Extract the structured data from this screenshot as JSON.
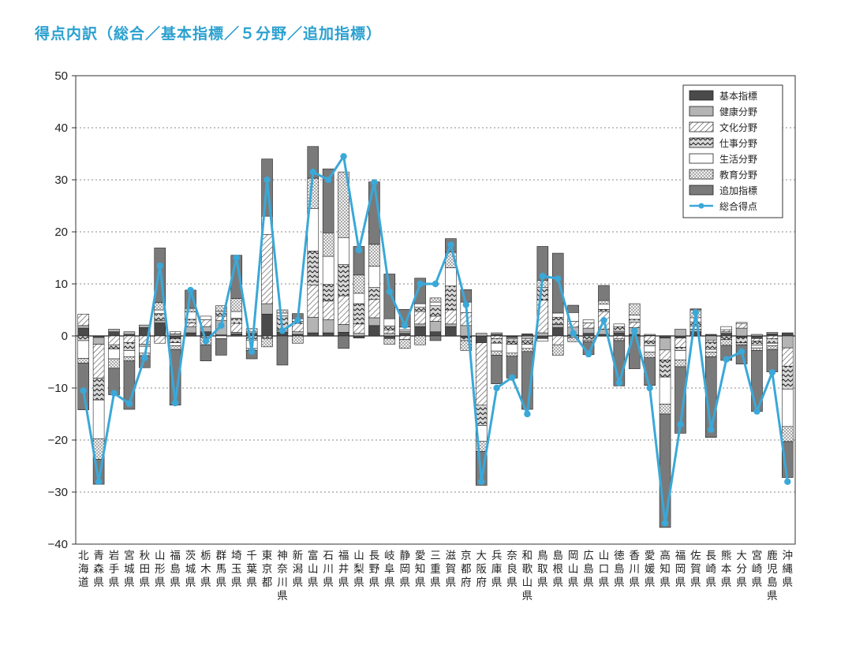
{
  "chart_data": {
    "type": "bar",
    "stacked": true,
    "title": "得点内訳（総合／基本指標／５分野／追加指標）",
    "ylim": [
      -40,
      50
    ],
    "yticks": [
      -40,
      -30,
      -20,
      -10,
      0,
      10,
      20,
      30,
      40,
      50
    ],
    "grid": true,
    "legend_position": "top-right",
    "categories": [
      "北海道",
      "青森県",
      "岩手県",
      "宮城県",
      "秋田県",
      "山形県",
      "福島県",
      "茨城県",
      "栃木県",
      "群馬県",
      "埼玉県",
      "千葉県",
      "東京都",
      "神奈川県",
      "新潟県",
      "富山県",
      "石川県",
      "福井県",
      "山梨県",
      "長野県",
      "岐阜県",
      "静岡県",
      "愛知県",
      "三重県",
      "滋賀県",
      "京都府",
      "大阪府",
      "兵庫県",
      "奈良県",
      "和歌山県",
      "鳥取県",
      "島根県",
      "岡山県",
      "広島県",
      "山口県",
      "徳島県",
      "香川県",
      "愛媛県",
      "高知県",
      "福岡県",
      "佐賀県",
      "長崎県",
      "熊本県",
      "大分県",
      "宮崎県",
      "鹿児島県",
      "沖縄県"
    ],
    "series": [
      {
        "name": "基本指標",
        "color": "#4a4a4a",
        "pattern": "solid-dark",
        "values": [
          1.5,
          -0.3,
          0.8,
          0.3,
          1.6,
          2.5,
          -0.5,
          0.6,
          0.8,
          0.2,
          0.4,
          0.5,
          4.2,
          0.7,
          0.3,
          0.6,
          0.6,
          0.7,
          -0.4,
          2.0,
          -0.5,
          0.5,
          1.8,
          0.8,
          1.8,
          -0.3,
          -1.3,
          0.3,
          -0.3,
          0.4,
          -0.5,
          1.6,
          0.2,
          0.5,
          0.3,
          0.6,
          0.3,
          0.1,
          -0.4,
          -0.4,
          0.8,
          0.3,
          0.5,
          -0.3,
          -0.5,
          0.4,
          0.6
        ]
      },
      {
        "name": "健康分野",
        "color": "#b4b4b4",
        "pattern": "solid-light",
        "values": [
          0.5,
          -1.3,
          0.5,
          0.5,
          0.5,
          0.5,
          0.4,
          1.2,
          1.0,
          2.8,
          0.3,
          0.3,
          2.0,
          0.3,
          0.5,
          3.0,
          2.5,
          1.5,
          0.5,
          1.5,
          0.5,
          0.3,
          0.5,
          2.0,
          0.5,
          2.0,
          0.5,
          0.3,
          -0.3,
          -0.5,
          0.6,
          0.6,
          1.5,
          1.0,
          1.0,
          0.3,
          1.3,
          0.2,
          -2.3,
          1.3,
          0.5,
          -0.8,
          0.3,
          1.5,
          0.3,
          0.3,
          -2.3
        ]
      },
      {
        "name": "文化分野",
        "color": "#ffffff",
        "pattern": "diag-right",
        "values": [
          2.2,
          -6.5,
          -1.7,
          -1.3,
          -1.6,
          -1.4,
          0.4,
          0.7,
          1.3,
          0.8,
          1.7,
          0.6,
          13.3,
          0.3,
          1.6,
          6.2,
          3.6,
          5.5,
          1.8,
          3.5,
          0.6,
          -0.7,
          2.4,
          1.0,
          2.7,
          2.5,
          -12.0,
          -0.5,
          -0.4,
          -0.4,
          6.3,
          -1.7,
          1.1,
          1.0,
          3.4,
          -0.5,
          1.0,
          -1.0,
          -1.9,
          -1.8,
          0.6,
          -0.4,
          0.4,
          0.9,
          -0.5,
          -0.5,
          -3.5
        ]
      },
      {
        "name": "仕事分野",
        "color": "#d8d8d8",
        "pattern": "zigzag",
        "values": [
          -0.9,
          -4.2,
          -0.8,
          -1.5,
          -0.4,
          1.3,
          -0.8,
          0.7,
          -0.3,
          1.0,
          1.0,
          -0.8,
          -0.5,
          2.6,
          0.4,
          6.5,
          3.2,
          6.0,
          3.9,
          2.3,
          0.8,
          0.4,
          0.8,
          2.0,
          4.6,
          -0.6,
          -3.9,
          -0.9,
          -0.6,
          -0.7,
          2.4,
          1.4,
          -0.3,
          -0.8,
          0.4,
          0.9,
          0.6,
          -0.9,
          -3.3,
          -0.6,
          0.8,
          -1.4,
          -0.7,
          -1.0,
          -0.8,
          -0.9,
          -4.4
        ]
      },
      {
        "name": "生活分野",
        "color": "#ffffff",
        "pattern": "blank",
        "values": [
          -3.4,
          -7.5,
          -1.9,
          -1.2,
          -1.3,
          0.7,
          -0.6,
          1.4,
          0.7,
          -0.5,
          1.3,
          -1.6,
          3.5,
          0.5,
          0.5,
          8.2,
          5.4,
          5.2,
          2.0,
          4.1,
          1.4,
          0.5,
          0.7,
          0.7,
          3.5,
          2.0,
          -3.0,
          -1.5,
          -1.7,
          -0.8,
          -0.5,
          0.8,
          1.7,
          0.6,
          1.0,
          0.5,
          0.8,
          -1.2,
          -5.2,
          -1.8,
          0.8,
          -0.5,
          0.6,
          0.2,
          -0.5,
          -0.5,
          -7.2
        ]
      },
      {
        "name": "教育分野",
        "color": "#ffffff",
        "pattern": "dots",
        "values": [
          -0.9,
          -3.9,
          -1.8,
          -0.8,
          -0.5,
          1.4,
          -0.7,
          0.7,
          -1.4,
          1.0,
          2.5,
          -0.4,
          -1.6,
          0.6,
          -1.4,
          5.8,
          4.5,
          12.6,
          3.5,
          4.2,
          -1.1,
          -1.7,
          -1.7,
          0.8,
          3.0,
          -1.9,
          -2.0,
          -0.8,
          -0.6,
          -0.6,
          1.4,
          -2.0,
          -0.8,
          -0.3,
          0.7,
          -0.4,
          2.2,
          -1.1,
          -1.9,
          -1.3,
          1.5,
          -0.9,
          -1.1,
          -0.4,
          -0.5,
          -0.7,
          -2.9
        ]
      },
      {
        "name": "追加指標",
        "color": "#7a7a7a",
        "pattern": "solid-mid",
        "values": [
          -9.0,
          -4.8,
          -5.1,
          -9.3,
          -2.3,
          10.5,
          -10.7,
          3.5,
          -3.1,
          -3.2,
          8.3,
          -1.6,
          11.0,
          -5.6,
          1.0,
          6.1,
          12.3,
          -2.4,
          5.5,
          12.0,
          8.6,
          3.4,
          4.9,
          -0.9,
          2.6,
          2.4,
          -6.5,
          -5.5,
          -4.2,
          -11.1,
          6.5,
          11.5,
          1.4,
          -2.5,
          2.9,
          -8.7,
          -6.3,
          -5.3,
          -21.8,
          -12.8,
          0.2,
          -15.5,
          -2.9,
          -3.7,
          -11.7,
          -4.3,
          -6.9
        ]
      }
    ],
    "total": {
      "name": "総合得点",
      "color": "#3aa8d8",
      "values": [
        -10.5,
        -28.0,
        -11.0,
        -13.0,
        -4.2,
        13.5,
        -12.9,
        8.8,
        -1.0,
        2.0,
        15.0,
        -3.0,
        30.0,
        1.0,
        3.0,
        31.5,
        30.0,
        34.5,
        16.5,
        29.5,
        8.5,
        2.0,
        10.0,
        10.0,
        17.5,
        6.0,
        -28.0,
        -10.0,
        -8.0,
        -15.0,
        11.5,
        11.0,
        0.5,
        -3.5,
        3.0,
        -9.0,
        1.0,
        -10.0,
        -36.0,
        -17.0,
        4.5,
        -18.0,
        -4.5,
        -3.0,
        -14.5,
        -7.0,
        -28.0
      ]
    }
  }
}
